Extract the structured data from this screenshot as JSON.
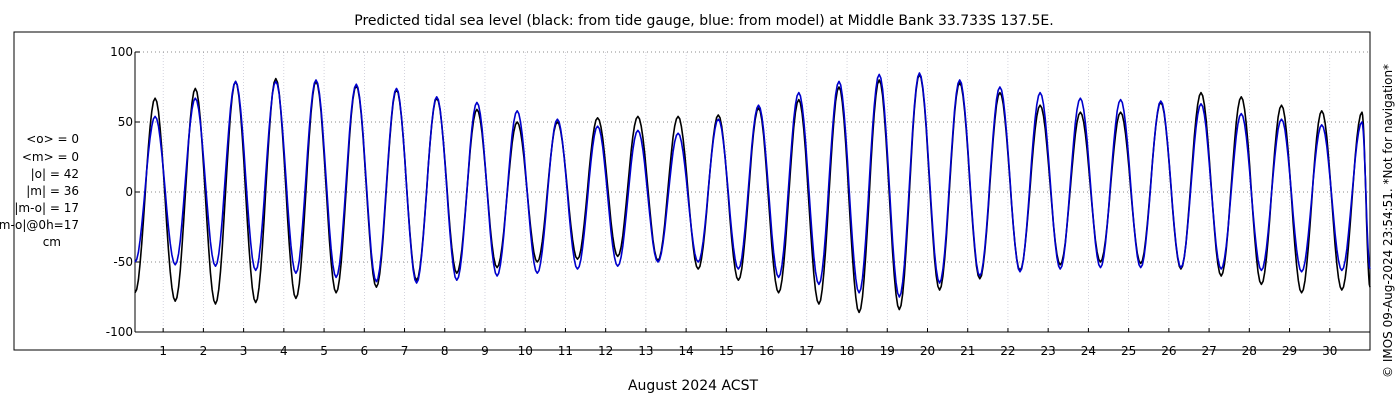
{
  "chart_data": {
    "type": "line",
    "title": "Predicted tidal sea level (black: from tide gauge, blue: from model) at Middle Bank 33.733S 137.5E.",
    "xlabel": "August 2024 ACST",
    "ylabel": "",
    "xlim": [
      0.3,
      31.0
    ],
    "ylim": [
      -100,
      100
    ],
    "x_ticks": [
      "1",
      "2",
      "3",
      "4",
      "5",
      "6",
      "7",
      "8",
      "9",
      "10",
      "11",
      "12",
      "13",
      "14",
      "15",
      "16",
      "17",
      "18",
      "19",
      "20",
      "21",
      "22",
      "23",
      "24",
      "25",
      "26",
      "27",
      "28",
      "29",
      "30"
    ],
    "y_ticks": [
      "100",
      "50",
      "0",
      "-50",
      "-100"
    ],
    "grid": true,
    "stats": [
      "<o> = 0",
      "<m> = 0",
      "|o| = 42",
      "|m| = 36",
      "|m-o| = 17",
      "|m-o|@0h=17",
      "cm"
    ],
    "copyright": "© IMOS 09-Aug-2024 23:54:51. *Not for navigation*",
    "series": [
      {
        "color": "#000000",
        "x": [
          0.3,
          0.8,
          1.3,
          1.8,
          2.3,
          2.8,
          3.3,
          3.8,
          4.3,
          4.8,
          5.3,
          5.8,
          6.3,
          6.8,
          7.3,
          7.8,
          8.3,
          8.8,
          9.3,
          9.8,
          10.3,
          10.8,
          11.3,
          11.8,
          12.3,
          12.8,
          13.3,
          13.8,
          14.3,
          14.8,
          15.3,
          15.8,
          16.3,
          16.8,
          17.3,
          17.8,
          18.3,
          18.8,
          19.3,
          19.8,
          20.3,
          20.8,
          21.3,
          21.8,
          22.3,
          22.8,
          23.3,
          23.8,
          24.3,
          24.8,
          25.3,
          25.8,
          26.3,
          26.8,
          27.3,
          27.8,
          28.3,
          28.8,
          29.3,
          29.8,
          30.3,
          30.8,
          31.0
        ],
        "y": [
          -72,
          67,
          -78,
          74,
          -80,
          79,
          -79,
          81,
          -76,
          79,
          -72,
          76,
          -68,
          73,
          -63,
          67,
          -58,
          59,
          -54,
          50,
          -50,
          50,
          -48,
          53,
          -46,
          54,
          -49,
          54,
          -55,
          55,
          -63,
          60,
          -72,
          66,
          -80,
          75,
          -86,
          80,
          -84,
          84,
          -70,
          78,
          -62,
          71,
          -56,
          62,
          -52,
          57,
          -50,
          57,
          -51,
          64,
          -55,
          71,
          -60,
          68,
          -66,
          62,
          -72,
          58,
          -70,
          57,
          -68
        ]
      },
      {
        "color": "#0000cc",
        "x": [
          0.3,
          0.8,
          1.3,
          1.8,
          2.3,
          2.8,
          3.3,
          3.8,
          4.3,
          4.8,
          5.3,
          5.8,
          6.3,
          6.8,
          7.3,
          7.8,
          8.3,
          8.8,
          9.3,
          9.8,
          10.3,
          10.8,
          11.3,
          11.8,
          12.3,
          12.8,
          13.3,
          13.8,
          14.3,
          14.8,
          15.3,
          15.8,
          16.3,
          16.8,
          17.3,
          17.8,
          18.3,
          18.8,
          19.3,
          19.8,
          20.3,
          20.8,
          21.3,
          21.8,
          22.3,
          22.8,
          23.3,
          23.8,
          24.3,
          24.8,
          25.3,
          25.8,
          26.3,
          26.8,
          27.3,
          27.8,
          28.3,
          28.8,
          29.3,
          29.8,
          30.3,
          30.8,
          31.0
        ],
        "y": [
          -50,
          54,
          -52,
          67,
          -53,
          79,
          -56,
          79,
          -58,
          80,
          -61,
          77,
          -64,
          74,
          -65,
          68,
          -63,
          64,
          -60,
          58,
          -58,
          52,
          -55,
          47,
          -53,
          44,
          -50,
          42,
          -50,
          52,
          -55,
          62,
          -61,
          71,
          -66,
          79,
          -72,
          84,
          -75,
          85,
          -65,
          80,
          -60,
          75,
          -57,
          71,
          -55,
          67,
          -54,
          66,
          -54,
          65,
          -54,
          63,
          -55,
          56,
          -56,
          52,
          -57,
          48,
          -56,
          50,
          -55
        ]
      }
    ]
  }
}
